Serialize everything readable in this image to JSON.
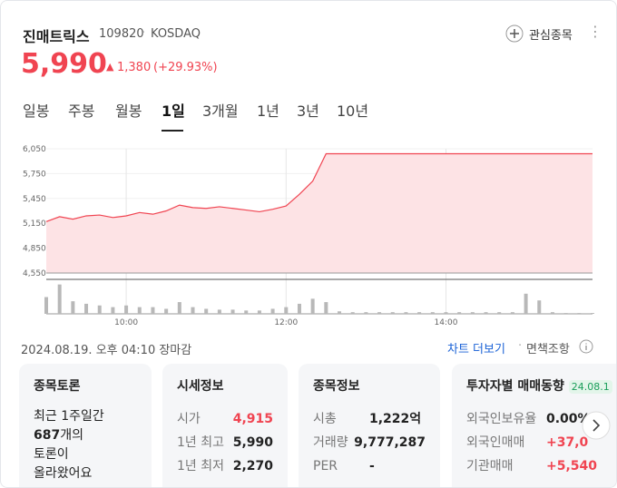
{
  "header": {
    "name": "진매트릭스",
    "code": "109820",
    "market": "KOSDAQ",
    "watch": "관심종목",
    "price": "5,990",
    "change": "1,380",
    "change_pct": "(+29.93%)"
  },
  "tabs": [
    "일봉",
    "주봉",
    "월봉",
    "1일",
    "3개월",
    "1년",
    "3년",
    "10년"
  ],
  "price_chart": {
    "type": "line",
    "color": "#f04451",
    "fill": "#fde3e5",
    "x": [
      "09:00",
      "09:10",
      "09:20",
      "09:30",
      "09:40",
      "09:50",
      "10:00",
      "10:10",
      "10:20",
      "10:30",
      "10:40",
      "10:50",
      "11:00",
      "11:10",
      "11:20",
      "11:30",
      "11:40",
      "11:50",
      "12:00",
      "12:10",
      "12:20",
      "12:30",
      "12:40",
      "12:50",
      "13:00",
      "13:10",
      "13:20",
      "13:30",
      "13:40",
      "13:50",
      "14:00",
      "14:10",
      "14:20",
      "14:30",
      "14:40",
      "14:50",
      "15:00",
      "15:10",
      "15:20",
      "15:30",
      "15:40",
      "15:50"
    ],
    "values": [
      5170,
      5230,
      5200,
      5240,
      5250,
      5220,
      5240,
      5280,
      5260,
      5300,
      5370,
      5340,
      5330,
      5350,
      5330,
      5310,
      5290,
      5320,
      5360,
      5500,
      5660,
      5990,
      5990,
      5990,
      5990,
      5990,
      5990,
      5990,
      5990,
      5990,
      5990,
      5990,
      5990,
      5990,
      5990,
      5990,
      5990,
      5990,
      5990,
      5990,
      5990,
      5990
    ],
    "volume": [
      20,
      35,
      15,
      12,
      10,
      8,
      10,
      8,
      8,
      6,
      14,
      8,
      6,
      5,
      5,
      4,
      4,
      6,
      8,
      12,
      18,
      14,
      3,
      2,
      2,
      2,
      2,
      2,
      2,
      2,
      2,
      2,
      2,
      2,
      2,
      2,
      24,
      16,
      2,
      1,
      1,
      1
    ],
    "volume_lim": [
      0,
      40
    ],
    "xlim": [
      "09:00",
      "15:50"
    ],
    "xticks": [
      "10:00",
      "12:00",
      "14:00"
    ],
    "ylim": [
      4550,
      6050
    ],
    "yticks": [
      {
        "value": 4550,
        "label": "4,550"
      },
      {
        "value": 4850,
        "label": "4,850"
      },
      {
        "value": 5150,
        "label": "5,150"
      },
      {
        "value": 5450,
        "label": "5,450"
      },
      {
        "value": 5750,
        "label": "5,750"
      },
      {
        "value": 6050,
        "label": "6,050"
      }
    ]
  },
  "footer": {
    "timestamp": "2024.08.19. 오후 04:10 장마감",
    "more": "차트 더보기",
    "disclaimer": "면책조항"
  },
  "cards": {
    "discussion": {
      "title": "종목토론",
      "line1": "최근 1주일간",
      "count": "687",
      "line2": "개의",
      "line3": "토론이",
      "line4": "올라왔어요"
    },
    "quote": {
      "title": "시세정보",
      "rows": [
        [
          "시가",
          "4,915"
        ],
        [
          "1년 최고",
          "5,990"
        ],
        [
          "1년 최저",
          "2,270"
        ]
      ]
    },
    "info": {
      "title": "종목정보",
      "rows": [
        [
          "시총",
          "1,222억"
        ],
        [
          "거래량",
          "9,777,287"
        ],
        [
          "PER",
          "-"
        ]
      ]
    },
    "investor": {
      "title": "투자자별 매매동향",
      "badge": "24.08.1",
      "rows": [
        [
          "외국인보유율",
          "0.00%"
        ],
        [
          "외국인매매",
          "+37,0"
        ],
        [
          "기관매매",
          "+5,540"
        ]
      ]
    }
  }
}
